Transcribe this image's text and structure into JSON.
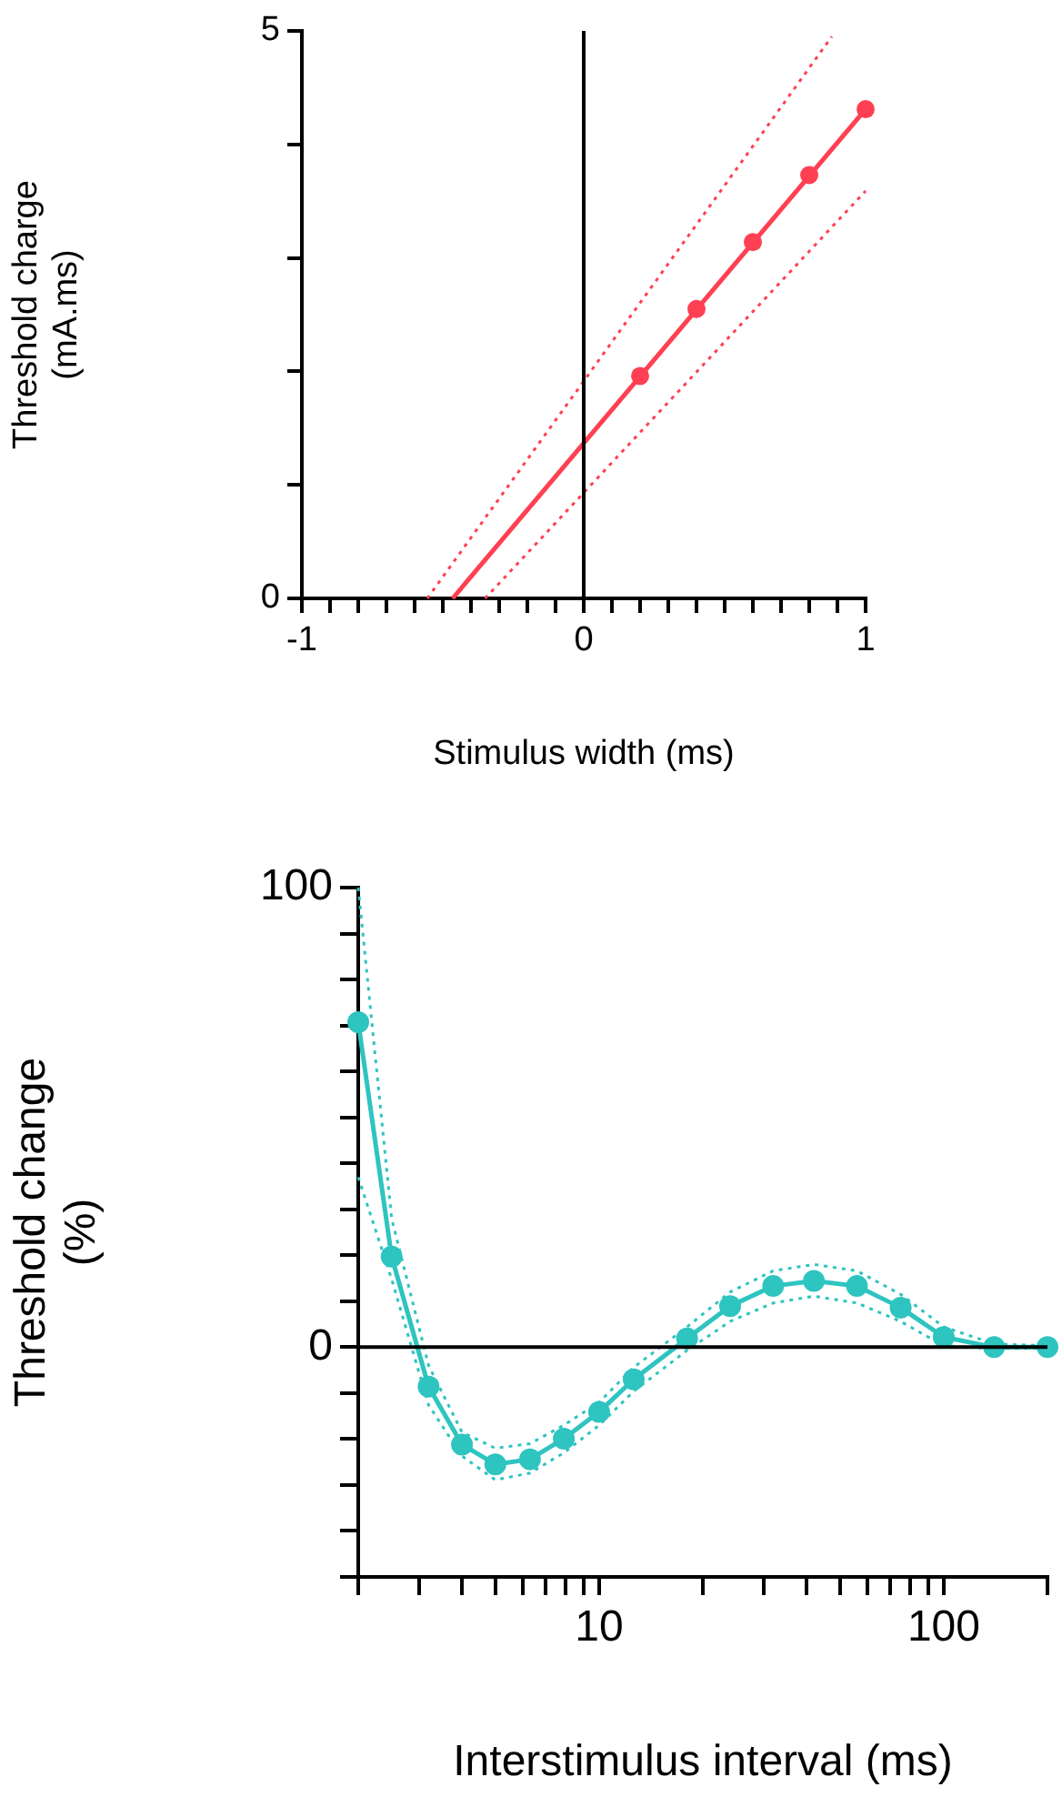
{
  "chart_data": [
    {
      "type": "line",
      "xlabel": "Stimulus width (ms)",
      "ylabel": "Threshold charge (mA.ms)",
      "xlim": [
        -1,
        1
      ],
      "ylim": [
        0,
        5
      ],
      "xticks": [
        -1,
        {
          "value": -0.9,
          "label": null
        },
        {
          "value": -0.8,
          "label": null
        },
        {
          "value": -0.7,
          "label": null
        },
        {
          "value": -0.6,
          "label": null
        },
        {
          "value": -0.5,
          "label": null
        },
        {
          "value": -0.4,
          "label": null
        },
        {
          "value": -0.3,
          "label": null
        },
        {
          "value": -0.2,
          "label": null
        },
        {
          "value": -0.1,
          "label": null
        },
        0,
        {
          "value": 0.1,
          "label": null
        },
        {
          "value": 0.2,
          "label": null
        },
        {
          "value": 0.3,
          "label": null
        },
        {
          "value": 0.4,
          "label": null
        },
        {
          "value": 0.5,
          "label": null
        },
        {
          "value": 0.6,
          "label": null
        },
        {
          "value": 0.7,
          "label": null
        },
        {
          "value": 0.8,
          "label": null
        },
        {
          "value": 0.9,
          "label": null
        },
        1
      ],
      "yticks": [
        0,
        {
          "value": 1,
          "label": null
        },
        {
          "value": 2,
          "label": null
        },
        {
          "value": 3,
          "label": null
        },
        {
          "value": 4,
          "label": null
        },
        5
      ],
      "grid": false,
      "legend": false,
      "ref_lines": [
        {
          "axis": "x",
          "value": 0,
          "color": "#000000"
        }
      ],
      "series": [
        {
          "color": "#ff4052",
          "line_style": "dotted",
          "marker": "none",
          "x": [
            -0.555,
            0.88
          ],
          "values": [
            0,
            4.95
          ]
        },
        {
          "color": "#ff4052",
          "line_style": "dotted",
          "marker": "none",
          "x": [
            -0.35,
            1
          ],
          "values": [
            0,
            3.59
          ]
        },
        {
          "color": "#ff4052",
          "line_style": "solid",
          "marker": "none",
          "x": [
            -0.465,
            1
          ],
          "values": [
            0,
            4.31
          ]
        },
        {
          "type": "scatter",
          "color": "#ff4052",
          "marker": "circle",
          "x": [
            0.2,
            0.4,
            0.6,
            0.8,
            1
          ],
          "values": [
            1.96,
            2.55,
            3.14,
            3.73,
            4.31
          ]
        }
      ]
    },
    {
      "type": "line",
      "xlabel": "Interstimulus interval (ms)",
      "ylabel": "Threshold change (%)",
      "log": "x",
      "xlim": [
        2,
        200
      ],
      "ylim": [
        -50,
        100
      ],
      "xticks": [
        {
          "value": 2,
          "label": null
        },
        {
          "value": 3,
          "label": null
        },
        {
          "value": 4,
          "label": null
        },
        {
          "value": 5,
          "label": null
        },
        {
          "value": 6,
          "label": null
        },
        {
          "value": 7,
          "label": null
        },
        {
          "value": 8,
          "label": null
        },
        {
          "value": 9,
          "label": null
        },
        10,
        {
          "value": 20,
          "label": null
        },
        {
          "value": 30,
          "label": null
        },
        {
          "value": 40,
          "label": null
        },
        {
          "value": 50,
          "label": null
        },
        {
          "value": 60,
          "label": null
        },
        {
          "value": 70,
          "label": null
        },
        {
          "value": 80,
          "label": null
        },
        {
          "value": 90,
          "label": null
        },
        100,
        {
          "value": 200,
          "label": null
        }
      ],
      "yticks": [
        {
          "value": -50,
          "label": null
        },
        {
          "value": -40,
          "label": null
        },
        {
          "value": -30,
          "label": null
        },
        {
          "value": -20,
          "label": null
        },
        {
          "value": -10,
          "label": null
        },
        0,
        {
          "value": 10,
          "label": null
        },
        {
          "value": 20,
          "label": null
        },
        {
          "value": 30,
          "label": null
        },
        {
          "value": 40,
          "label": null
        },
        {
          "value": 50,
          "label": null
        },
        {
          "value": 60,
          "label": null
        },
        {
          "value": 70,
          "label": null
        },
        {
          "value": 80,
          "label": null
        },
        {
          "value": 90,
          "label": null
        },
        100
      ],
      "grid": false,
      "legend": false,
      "ref_lines": [
        {
          "axis": "y",
          "value": 0,
          "color": "#000000"
        }
      ],
      "series": [
        {
          "color": "#2ec4c0",
          "line_style": "dotted",
          "marker": "none",
          "x": [
            2,
            2.5,
            3.2,
            4,
            5,
            6.3,
            7.9,
            10,
            12.6,
            18,
            24,
            32,
            42,
            56,
            75,
            100,
            140,
            200
          ],
          "values": [
            37,
            14.8,
            -12.6,
            -23.7,
            -28.9,
            -27.4,
            -23,
            -17,
            -9.6,
            -0.7,
            5.6,
            9.6,
            11.1,
            9.6,
            5.6,
            0.3,
            -0.3,
            -0.3
          ]
        },
        {
          "color": "#2ec4c0",
          "line_style": "dotted",
          "marker": "none",
          "x": [
            2,
            2.5,
            3.2,
            4,
            5,
            6.3,
            7.9,
            10,
            12.6,
            18,
            24,
            32,
            42,
            56,
            75,
            100,
            140,
            200
          ],
          "values": [
            100,
            28,
            -4,
            -18.5,
            -22,
            -21,
            -17,
            -12,
            -4.4,
            4.4,
            12,
            16.6,
            18,
            16.6,
            11.5,
            4.4,
            0.7,
            0.3
          ]
        },
        {
          "color": "#2ec4c0",
          "line_style": "solid",
          "marker": "circle",
          "x": [
            2,
            2.5,
            3.2,
            4,
            5,
            6.3,
            7.9,
            10,
            12.6,
            18,
            24,
            32,
            42,
            56,
            75,
            100,
            140,
            200
          ],
          "values": [
            70.7,
            19.7,
            -8.6,
            -21.2,
            -25.5,
            -24.4,
            -19.9,
            -14.1,
            -7.0,
            1.9,
            8.9,
            13.3,
            14.4,
            13.3,
            8.6,
            2.2,
            0,
            0
          ]
        }
      ]
    }
  ]
}
